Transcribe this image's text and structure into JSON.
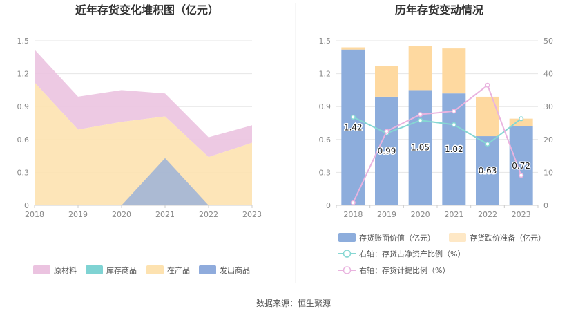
{
  "source": "数据来源：恒生聚源",
  "chart_data": [
    {
      "type": "area",
      "title": "近年存货变化堆积图（亿元）",
      "x": [
        "2018",
        "2019",
        "2020",
        "2021",
        "2022",
        "2023"
      ],
      "y_ticks": [
        "0",
        "0.3",
        "0.6",
        "0.9",
        "1.2",
        "1.5"
      ],
      "ylim": [
        0,
        1.5
      ],
      "stacked": true,
      "legend_position": "bottom",
      "grid": true,
      "series": [
        {
          "name": "原材料",
          "color": "#ebc3e0",
          "values": [
            0.3,
            0.3,
            0.29,
            0.21,
            0.18,
            0.16
          ]
        },
        {
          "name": "库存商品",
          "color": "#7fd3d3",
          "values": [
            0,
            0,
            0,
            0,
            0,
            0
          ]
        },
        {
          "name": "在产品",
          "color": "#fde2b0",
          "values": [
            1.12,
            0.69,
            0.76,
            0.81,
            0.44,
            0.57
          ]
        },
        {
          "name": "发出商品",
          "color": "#8fabdc",
          "values": [
            0,
            0,
            0,
            0.43,
            0,
            0
          ]
        }
      ]
    },
    {
      "type": "bar",
      "title": "历年存货变动情况",
      "categories": [
        "2018",
        "2019",
        "2020",
        "2021",
        "2022",
        "2023"
      ],
      "y_ticks": [
        "0",
        "0.3",
        "0.6",
        "0.9",
        "1.2",
        "1.5"
      ],
      "y2_ticks": [
        "0",
        "10",
        "20",
        "30",
        "40",
        "50"
      ],
      "ylim": [
        0,
        1.5
      ],
      "y2lim": [
        0,
        50
      ],
      "legend_position": "bottom",
      "grid": true,
      "bars": [
        {
          "name": "存货账面价值（亿元）",
          "color": "#8daddc",
          "values": [
            1.42,
            0.99,
            1.05,
            1.02,
            0.63,
            0.72
          ],
          "labels": [
            "1.42",
            "0.99",
            "1.05",
            "1.02",
            "0.63",
            "0.72"
          ]
        },
        {
          "name": "存货跌价准备（亿元）",
          "color": "#fed9a0",
          "values": [
            0.02,
            0.28,
            0.4,
            0.41,
            0.36,
            0.07
          ]
        }
      ],
      "lines": [
        {
          "name": "右轴：存货占净资产比例（%）",
          "color": "#86d7d3",
          "values": [
            26.8,
            21.9,
            25.8,
            24.5,
            18.6,
            26.3
          ]
        },
        {
          "name": "右轴：存货计提比例（%）",
          "color": "#e9b3df",
          "values": [
            0.8,
            22.5,
            27.6,
            28.6,
            36.5,
            9.1
          ]
        }
      ]
    }
  ]
}
